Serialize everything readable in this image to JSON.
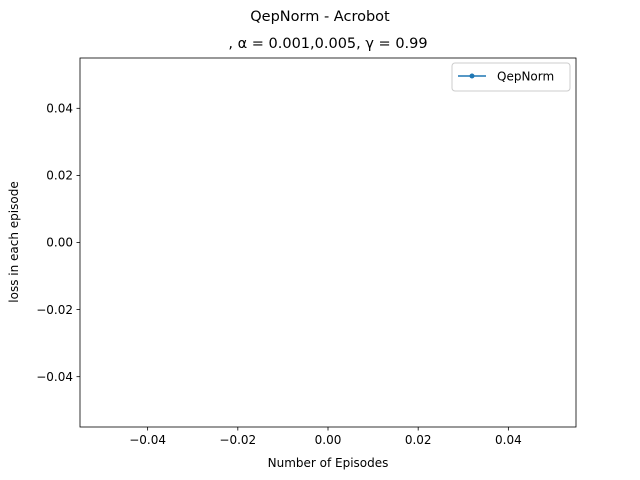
{
  "chart_data": {
    "type": "line",
    "suptitle": "QepNorm - Acrobot",
    "title": ", α = 0.001,0.005, γ = 0.99",
    "xlabel": "Number of Episodes",
    "ylabel": "loss in each episode",
    "xlim": [
      -0.055,
      0.055
    ],
    "ylim": [
      -0.055,
      0.055
    ],
    "xticks": [
      -0.04,
      -0.02,
      0.0,
      0.02,
      0.04
    ],
    "xtick_labels": [
      "−0.04",
      "−0.02",
      "0.00",
      "0.02",
      "0.04"
    ],
    "yticks": [
      -0.04,
      -0.02,
      0.0,
      0.02,
      0.04
    ],
    "ytick_labels": [
      "−0.04",
      "−0.02",
      "0.00",
      "0.02",
      "0.04"
    ],
    "legend_position": "top-right",
    "grid": false,
    "series": [
      {
        "name": "QepNorm",
        "color": "#1f77b4",
        "marker": "circle",
        "x": [],
        "y": []
      }
    ]
  }
}
